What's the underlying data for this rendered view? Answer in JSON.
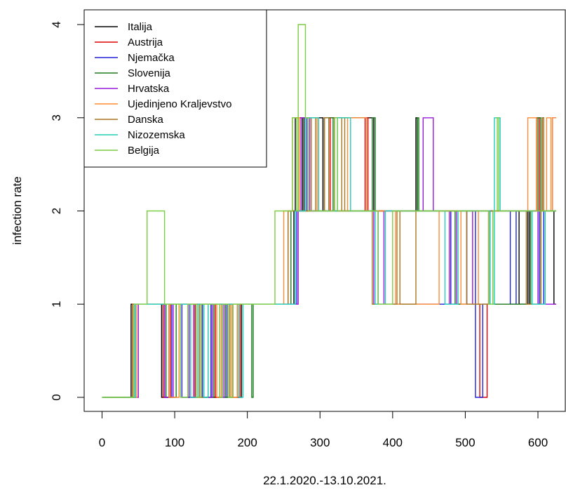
{
  "chart_data": {
    "type": "line",
    "title": "",
    "xlabel": "22.1.2020.-13.10.2021.",
    "ylabel": "infection rate",
    "xlim": [
      0,
      630
    ],
    "ylim": [
      0,
      4
    ],
    "x_ticks": [
      0,
      100,
      200,
      300,
      400,
      500,
      600
    ],
    "y_ticks": [
      0,
      1,
      2,
      3,
      4
    ],
    "line_style": "step",
    "grid": false,
    "legend_position": "top-left",
    "series": [
      {
        "name": "Italija",
        "color": "#000000",
        "points": [
          [
            0,
            0
          ],
          [
            40,
            1
          ],
          [
            82,
            0
          ],
          [
            92,
            1
          ],
          [
            118,
            0
          ],
          [
            128,
            1
          ],
          [
            150,
            0
          ],
          [
            162,
            1
          ],
          [
            186,
            0
          ],
          [
            192,
            1
          ],
          [
            238,
            1
          ],
          [
            264,
            2
          ],
          [
            266,
            3
          ],
          [
            276,
            2
          ],
          [
            278,
            3
          ],
          [
            304,
            2
          ],
          [
            306,
            3
          ],
          [
            374,
            2
          ],
          [
            430,
            2
          ],
          [
            432,
            3
          ],
          [
            434,
            2
          ],
          [
            572,
            2
          ],
          [
            574,
            1
          ],
          [
            586,
            2
          ],
          [
            588,
            1
          ],
          [
            604,
            2
          ],
          [
            606,
            3
          ],
          [
            608,
            2
          ],
          [
            622,
            1
          ],
          [
            625,
            1
          ]
        ]
      },
      {
        "name": "Austrija",
        "color": "#df0000",
        "points": [
          [
            0,
            0
          ],
          [
            42,
            1
          ],
          [
            84,
            0
          ],
          [
            94,
            1
          ],
          [
            128,
            0
          ],
          [
            136,
            1
          ],
          [
            156,
            0
          ],
          [
            166,
            1
          ],
          [
            180,
            0
          ],
          [
            190,
            1
          ],
          [
            238,
            1
          ],
          [
            256,
            2
          ],
          [
            270,
            3
          ],
          [
            284,
            2
          ],
          [
            314,
            3
          ],
          [
            320,
            2
          ],
          [
            360,
            2
          ],
          [
            362,
            3
          ],
          [
            366,
            2
          ],
          [
            476,
            2
          ],
          [
            480,
            1
          ],
          [
            520,
            0
          ],
          [
            530,
            1
          ],
          [
            532,
            2
          ],
          [
            596,
            2
          ],
          [
            598,
            3
          ],
          [
            602,
            2
          ],
          [
            618,
            2
          ],
          [
            620,
            3
          ],
          [
            625,
            3
          ]
        ]
      },
      {
        "name": "Njemačka",
        "color": "#2222dd",
        "points": [
          [
            0,
            0
          ],
          [
            46,
            1
          ],
          [
            86,
            0
          ],
          [
            96,
            1
          ],
          [
            110,
            0
          ],
          [
            120,
            1
          ],
          [
            138,
            0
          ],
          [
            150,
            1
          ],
          [
            166,
            0
          ],
          [
            172,
            1
          ],
          [
            238,
            1
          ],
          [
            268,
            2
          ],
          [
            274,
            3
          ],
          [
            282,
            2
          ],
          [
            378,
            2
          ],
          [
            380,
            1
          ],
          [
            478,
            1
          ],
          [
            480,
            2
          ],
          [
            512,
            2
          ],
          [
            514,
            0
          ],
          [
            524,
            1
          ],
          [
            534,
            2
          ],
          [
            560,
            2
          ],
          [
            562,
            1
          ],
          [
            570,
            2
          ],
          [
            600,
            2
          ],
          [
            602,
            1
          ],
          [
            608,
            2
          ],
          [
            625,
            2
          ]
        ]
      },
      {
        "name": "Slovenija",
        "color": "#1f7a1f",
        "points": [
          [
            0,
            0
          ],
          [
            44,
            1
          ],
          [
            88,
            0
          ],
          [
            102,
            1
          ],
          [
            140,
            0
          ],
          [
            154,
            1
          ],
          [
            170,
            0
          ],
          [
            176,
            1
          ],
          [
            206,
            0
          ],
          [
            208,
            1
          ],
          [
            238,
            1
          ],
          [
            260,
            2
          ],
          [
            284,
            3
          ],
          [
            298,
            2
          ],
          [
            312,
            3
          ],
          [
            318,
            2
          ],
          [
            340,
            2
          ],
          [
            372,
            3
          ],
          [
            376,
            2
          ],
          [
            432,
            2
          ],
          [
            434,
            3
          ],
          [
            436,
            2
          ],
          [
            482,
            2
          ],
          [
            486,
            1
          ],
          [
            502,
            2
          ],
          [
            534,
            2
          ],
          [
            538,
            1
          ],
          [
            590,
            2
          ],
          [
            598,
            2
          ],
          [
            600,
            3
          ],
          [
            604,
            2
          ],
          [
            625,
            2
          ]
        ]
      },
      {
        "name": "Hrvatska",
        "color": "#9a1adc",
        "points": [
          [
            0,
            0
          ],
          [
            50,
            1
          ],
          [
            86,
            0
          ],
          [
            98,
            1
          ],
          [
            120,
            0
          ],
          [
            126,
            1
          ],
          [
            146,
            0
          ],
          [
            152,
            1
          ],
          [
            162,
            0
          ],
          [
            168,
            1
          ],
          [
            238,
            1
          ],
          [
            270,
            2
          ],
          [
            274,
            3
          ],
          [
            286,
            2
          ],
          [
            370,
            2
          ],
          [
            374,
            1
          ],
          [
            388,
            2
          ],
          [
            440,
            2
          ],
          [
            442,
            3
          ],
          [
            456,
            2
          ],
          [
            476,
            2
          ],
          [
            478,
            1
          ],
          [
            488,
            2
          ],
          [
            500,
            2
          ],
          [
            502,
            1
          ],
          [
            510,
            2
          ],
          [
            598,
            2
          ],
          [
            600,
            1
          ],
          [
            625,
            1
          ]
        ]
      },
      {
        "name": "Ujedinjeno Kraljevstvo",
        "color": "#ff8c33",
        "points": [
          [
            0,
            0
          ],
          [
            48,
            1
          ],
          [
            92,
            0
          ],
          [
            106,
            1
          ],
          [
            158,
            0
          ],
          [
            164,
            1
          ],
          [
            178,
            0
          ],
          [
            186,
            1
          ],
          [
            238,
            1
          ],
          [
            250,
            2
          ],
          [
            262,
            3
          ],
          [
            272,
            2
          ],
          [
            284,
            3
          ],
          [
            296,
            2
          ],
          [
            338,
            3
          ],
          [
            364,
            2
          ],
          [
            400,
            2
          ],
          [
            404,
            1
          ],
          [
            432,
            1
          ],
          [
            462,
            1
          ],
          [
            464,
            2
          ],
          [
            490,
            2
          ],
          [
            494,
            1
          ],
          [
            518,
            2
          ],
          [
            530,
            2
          ],
          [
            532,
            1
          ],
          [
            538,
            2
          ],
          [
            584,
            2
          ],
          [
            586,
            3
          ],
          [
            596,
            3
          ],
          [
            598,
            2
          ],
          [
            610,
            2
          ],
          [
            612,
            3
          ],
          [
            616,
            3
          ],
          [
            618,
            2
          ],
          [
            620,
            3
          ],
          [
            625,
            3
          ]
        ]
      },
      {
        "name": "Danska",
        "color": "#a8771f",
        "points": [
          [
            0,
            0
          ],
          [
            42,
            1
          ],
          [
            70,
            1
          ],
          [
            130,
            1
          ],
          [
            134,
            0
          ],
          [
            140,
            1
          ],
          [
            176,
            0
          ],
          [
            180,
            1
          ],
          [
            238,
            1
          ],
          [
            256,
            2
          ],
          [
            288,
            3
          ],
          [
            294,
            2
          ],
          [
            306,
            3
          ],
          [
            312,
            2
          ],
          [
            330,
            3
          ],
          [
            334,
            2
          ],
          [
            370,
            2
          ],
          [
            372,
            1
          ],
          [
            406,
            2
          ],
          [
            410,
            1
          ],
          [
            432,
            2
          ],
          [
            500,
            2
          ],
          [
            502,
            1
          ],
          [
            530,
            1
          ],
          [
            534,
            2
          ],
          [
            580,
            2
          ],
          [
            584,
            1
          ],
          [
            604,
            2
          ],
          [
            606,
            3
          ],
          [
            608,
            2
          ],
          [
            625,
            2
          ]
        ]
      },
      {
        "name": "Nizozemska",
        "color": "#22ccbb",
        "points": [
          [
            0,
            0
          ],
          [
            46,
            1
          ],
          [
            74,
            1
          ],
          [
            118,
            1
          ],
          [
            122,
            0
          ],
          [
            132,
            1
          ],
          [
            140,
            0
          ],
          [
            146,
            1
          ],
          [
            188,
            0
          ],
          [
            194,
            1
          ],
          [
            238,
            1
          ],
          [
            266,
            2
          ],
          [
            280,
            3
          ],
          [
            298,
            2
          ],
          [
            324,
            3
          ],
          [
            342,
            2
          ],
          [
            370,
            2
          ],
          [
            376,
            1
          ],
          [
            390,
            2
          ],
          [
            470,
            2
          ],
          [
            472,
            1
          ],
          [
            490,
            2
          ],
          [
            530,
            2
          ],
          [
            534,
            1
          ],
          [
            540,
            3
          ],
          [
            548,
            2
          ],
          [
            590,
            2
          ],
          [
            592,
            1
          ],
          [
            610,
            2
          ],
          [
            625,
            2
          ]
        ]
      },
      {
        "name": "Belgija",
        "color": "#7ccc44",
        "points": [
          [
            0,
            0
          ],
          [
            44,
            1
          ],
          [
            62,
            2
          ],
          [
            86,
            1
          ],
          [
            104,
            1
          ],
          [
            108,
            0
          ],
          [
            118,
            1
          ],
          [
            130,
            0
          ],
          [
            136,
            1
          ],
          [
            162,
            0
          ],
          [
            166,
            1
          ],
          [
            174,
            0
          ],
          [
            180,
            1
          ],
          [
            236,
            1
          ],
          [
            238,
            2
          ],
          [
            262,
            3
          ],
          [
            268,
            2
          ],
          [
            270,
            4
          ],
          [
            280,
            3
          ],
          [
            284,
            2
          ],
          [
            320,
            3
          ],
          [
            324,
            2
          ],
          [
            376,
            2
          ],
          [
            380,
            1
          ],
          [
            400,
            2
          ],
          [
            530,
            2
          ],
          [
            532,
            1
          ],
          [
            538,
            2
          ],
          [
            544,
            3
          ],
          [
            546,
            2
          ],
          [
            625,
            2
          ]
        ]
      }
    ]
  }
}
